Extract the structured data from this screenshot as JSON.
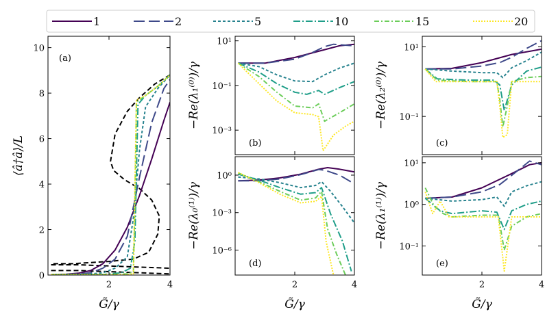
{
  "figure": {
    "style": {
      "colors": [
        "#440154",
        "#3e4989",
        "#26828e",
        "#1f9e89",
        "#6ccd5a",
        "#fde725"
      ],
      "dashes": [
        "",
        "16 6",
        "4 3",
        "10 3 2 3",
        "7 3 2 3",
        "2 2"
      ]
    },
    "legend": {
      "entries": [
        "1",
        "2",
        "5",
        "10",
        "15",
        "20"
      ],
      "placement": "top"
    },
    "x_label": "G̃/γ",
    "panels": [
      {
        "id": "a",
        "label": "(a)",
        "ylabel": "⟨â†â⟩/L",
        "yscale": "linear",
        "ylim": [
          0,
          10.5
        ],
        "yticks": [
          0,
          2,
          4,
          6,
          8,
          10
        ],
        "ytick_labels": [
          "0",
          "2",
          "4",
          "6",
          "8",
          "10"
        ]
      },
      {
        "id": "b",
        "label": "(b)",
        "ylabel": "−Re(λ₁⁽⁰⁾)/γ",
        "yscale": "log",
        "ylim": [
          8e-05,
          16
        ],
        "yticks": [
          0.001,
          0.1,
          10
        ],
        "ytick_labels": [
          "10⁻³",
          "10⁻¹",
          "10¹"
        ]
      },
      {
        "id": "c",
        "label": "(c)",
        "ylabel": "−Re(λ₂⁽⁰⁾)/γ",
        "yscale": "log",
        "ylim": [
          0.008,
          20
        ],
        "yticks": [
          0.1,
          10
        ],
        "ytick_labels": [
          "10⁻¹",
          "10¹"
        ]
      },
      {
        "id": "d",
        "label": "(d)",
        "ylabel": "−Re(λ₀⁽¹⁾)/γ",
        "yscale": "log",
        "ylim": [
          1e-08,
          30
        ],
        "yticks": [
          1e-06,
          0.001,
          1
        ],
        "ytick_labels": [
          "10⁻⁶",
          "10⁻³",
          "10⁰"
        ]
      },
      {
        "id": "e",
        "label": "(e)",
        "ylabel": "−Re(λ₁⁽¹⁾)/γ",
        "yscale": "log",
        "ylim": [
          0.02,
          14
        ],
        "yticks": [
          0.1,
          1,
          10
        ],
        "ytick_labels": [
          "10⁻¹",
          "10⁰",
          "10¹"
        ]
      }
    ],
    "x_ticks": [
      2,
      4
    ],
    "x_tick_labels": [
      "2",
      "4"
    ]
  },
  "chart_data": [
    {
      "type": "line",
      "panel": "a",
      "xlim": [
        0,
        4
      ],
      "ylim": [
        0,
        10.5
      ],
      "series": [
        {
          "name": "1",
          "x": [
            0.1,
            0.6,
            1.0,
            1.4,
            1.8,
            2.2,
            2.6,
            3.0,
            3.4,
            3.8,
            4.0
          ],
          "y": [
            0.02,
            0.04,
            0.08,
            0.2,
            0.5,
            1.1,
            2.1,
            3.5,
            5.1,
            6.8,
            7.6
          ]
        },
        {
          "name": "2",
          "x": [
            0.1,
            0.6,
            1.0,
            1.4,
            1.8,
            2.2,
            2.6,
            3.0,
            3.4,
            3.8,
            4.0
          ],
          "y": [
            0.02,
            0.03,
            0.05,
            0.1,
            0.3,
            0.7,
            1.7,
            4.3,
            6.7,
            8.2,
            8.6
          ]
        },
        {
          "name": "5",
          "x": [
            0.1,
            0.6,
            1.0,
            1.4,
            1.8,
            2.2,
            2.6,
            2.8,
            3.0,
            3.2,
            3.6,
            4.0
          ],
          "y": [
            0.02,
            0.02,
            0.02,
            0.05,
            0.1,
            0.3,
            0.8,
            2.5,
            5.5,
            7.4,
            8.2,
            8.8
          ]
        },
        {
          "name": "10",
          "x": [
            0.1,
            1.0,
            1.8,
            2.4,
            2.7,
            2.85,
            2.95,
            3.2,
            3.6,
            4.0
          ],
          "y": [
            0.02,
            0.02,
            0.02,
            0.1,
            0.3,
            1.5,
            7.5,
            7.9,
            8.3,
            8.8
          ]
        },
        {
          "name": "15",
          "x": [
            0.1,
            1.0,
            2.0,
            2.6,
            2.8,
            2.85,
            2.9,
            3.2,
            3.6,
            4.0
          ],
          "y": [
            0.02,
            0.02,
            0.02,
            0.05,
            0.15,
            3.0,
            7.6,
            7.9,
            8.3,
            8.8
          ]
        },
        {
          "name": "20",
          "x": [
            0.1,
            1.0,
            2.0,
            2.6,
            2.8,
            2.85,
            2.9,
            3.2,
            3.6,
            4.0
          ],
          "y": [
            0.02,
            0.02,
            0.02,
            0.02,
            0.05,
            4.0,
            7.7,
            7.9,
            8.3,
            8.8
          ]
        }
      ],
      "extra_lines": [
        {
          "style": "dashed",
          "color": "#000000",
          "x": [
            0.1,
            1.0,
            2.0,
            3.0,
            4.0
          ],
          "y": [
            0.2,
            0.2,
            0.15,
            0.1,
            0.05
          ]
        },
        {
          "style": "dashed",
          "color": "#000000",
          "x": [
            0.1,
            1.0,
            2.0,
            3.0,
            4.0
          ],
          "y": [
            0.45,
            0.45,
            0.4,
            0.35,
            0.3
          ]
        },
        {
          "style": "dashed",
          "color": "#000000",
          "x": [
            4.0,
            3.5,
            3.0,
            2.6,
            2.2,
            2.05,
            2.15,
            2.5,
            3.0,
            3.4,
            3.65,
            3.6,
            3.3,
            2.8,
            2.0,
            0.8,
            0.1
          ],
          "y": [
            8.8,
            8.4,
            7.8,
            7.2,
            6.2,
            5.0,
            4.6,
            4.2,
            3.8,
            3.3,
            2.6,
            1.8,
            1.0,
            0.7,
            0.6,
            0.5,
            0.5
          ]
        }
      ]
    },
    {
      "type": "line",
      "panel": "b",
      "yscale": "log",
      "xlim": [
        0,
        4
      ],
      "series": [
        {
          "name": "1",
          "x": [
            0.1,
            1.0,
            2.0,
            3.0,
            3.5,
            4.0
          ],
          "y": [
            1.0,
            1.0,
            1.8,
            4.0,
            6.0,
            7.0
          ]
        },
        {
          "name": "2",
          "x": [
            0.1,
            1.0,
            2.0,
            2.6,
            3.0,
            3.3,
            3.6,
            4.0
          ],
          "y": [
            1.0,
            1.0,
            1.5,
            3.0,
            5.5,
            7.0,
            6.5,
            6.0
          ]
        },
        {
          "name": "5",
          "x": [
            0.1,
            0.8,
            1.4,
            2.0,
            2.6,
            3.0,
            3.5,
            4.0
          ],
          "y": [
            1.0,
            0.7,
            0.3,
            0.16,
            0.15,
            0.3,
            0.6,
            1.0
          ]
        },
        {
          "name": "10",
          "x": [
            0.1,
            0.8,
            1.4,
            2.0,
            2.4,
            2.8,
            3.0,
            3.5,
            4.0
          ],
          "y": [
            1.0,
            0.4,
            0.12,
            0.05,
            0.04,
            0.06,
            0.04,
            0.08,
            0.15
          ]
        },
        {
          "name": "15",
          "x": [
            0.1,
            0.8,
            1.4,
            2.0,
            2.6,
            2.8,
            3.0,
            3.5,
            4.0
          ],
          "y": [
            1.0,
            0.25,
            0.05,
            0.012,
            0.01,
            0.015,
            0.0025,
            0.006,
            0.015
          ]
        },
        {
          "name": "20",
          "x": [
            0.1,
            0.8,
            1.4,
            2.0,
            2.6,
            2.8,
            2.95,
            3.3,
            3.7,
            4.0
          ],
          "y": [
            1.0,
            0.12,
            0.02,
            0.006,
            0.005,
            0.004,
            0.00012,
            0.0006,
            0.0015,
            0.0025
          ]
        }
      ]
    },
    {
      "type": "line",
      "panel": "c",
      "yscale": "log",
      "xlim": [
        0,
        4
      ],
      "series": [
        {
          "name": "1",
          "x": [
            0.1,
            1.0,
            2.0,
            3.0,
            4.0
          ],
          "y": [
            2.3,
            2.4,
            3.5,
            6.0,
            8.5
          ]
        },
        {
          "name": "2",
          "x": [
            0.1,
            1.0,
            2.0,
            2.6,
            3.0,
            3.5,
            4.0
          ],
          "y": [
            2.3,
            2.3,
            2.8,
            3.5,
            5.0,
            9.0,
            15.0
          ]
        },
        {
          "name": "5",
          "x": [
            0.1,
            1.0,
            2.0,
            2.5,
            2.7,
            3.0,
            3.5,
            4.0
          ],
          "y": [
            2.3,
            2.0,
            1.8,
            1.8,
            1.3,
            2.5,
            4.0,
            7.0
          ]
        },
        {
          "name": "10",
          "x": [
            0.1,
            0.5,
            1.5,
            2.4,
            2.6,
            2.75,
            3.0,
            3.5,
            4.0
          ],
          "y": [
            2.3,
            1.2,
            1.1,
            1.1,
            0.8,
            0.15,
            0.8,
            2.0,
            2.6
          ]
        },
        {
          "name": "15",
          "x": [
            0.1,
            0.5,
            1.5,
            2.5,
            2.6,
            2.7,
            2.85,
            3.0,
            3.5,
            4.0
          ],
          "y": [
            2.3,
            1.1,
            1.0,
            1.0,
            0.3,
            0.05,
            0.2,
            1.0,
            1.3,
            1.4
          ]
        },
        {
          "name": "20",
          "x": [
            0.1,
            0.45,
            1.5,
            2.5,
            2.6,
            2.7,
            2.85,
            3.0,
            3.5,
            4.0
          ],
          "y": [
            2.3,
            1.0,
            1.0,
            1.0,
            0.2,
            0.025,
            0.03,
            1.0,
            1.0,
            1.0
          ]
        }
      ]
    },
    {
      "type": "line",
      "panel": "d",
      "yscale": "log",
      "xlim": [
        0,
        4
      ],
      "series": [
        {
          "name": "1",
          "x": [
            0.1,
            0.8,
            1.5,
            2.2,
            2.8,
            3.1,
            3.5,
            4.0
          ],
          "y": [
            0.35,
            0.4,
            0.6,
            1.2,
            3.0,
            4.0,
            3.0,
            1.8
          ]
        },
        {
          "name": "2",
          "x": [
            0.1,
            0.8,
            1.5,
            2.2,
            2.8,
            3.0,
            3.5,
            4.0
          ],
          "y": [
            0.35,
            0.35,
            0.5,
            1.1,
            2.8,
            2.5,
            1.0,
            0.2
          ]
        },
        {
          "name": "5",
          "x": [
            0.1,
            0.8,
            1.5,
            2.2,
            2.7,
            2.9,
            3.2,
            3.6,
            4.0
          ],
          "y": [
            0.7,
            0.5,
            0.25,
            0.1,
            0.15,
            0.3,
            0.05,
            0.003,
            0.00015
          ]
        },
        {
          "name": "10",
          "x": [
            0.1,
            0.8,
            1.5,
            2.2,
            2.7,
            2.9,
            3.2,
            3.6,
            3.9
          ],
          "y": [
            1.2,
            0.4,
            0.1,
            0.03,
            0.04,
            0.1,
            0.0008,
            5e-06,
            2e-08
          ]
        },
        {
          "name": "15",
          "x": [
            0.1,
            0.8,
            1.5,
            2.2,
            2.7,
            2.9,
            3.1,
            3.4,
            3.7
          ],
          "y": [
            1.5,
            0.3,
            0.05,
            0.01,
            0.015,
            0.05,
            5e-05,
            5e-07,
            1e-08
          ]
        },
        {
          "name": "20",
          "x": [
            0.1,
            0.8,
            1.5,
            2.2,
            2.7,
            2.9,
            3.05,
            3.3
          ],
          "y": [
            1.6,
            0.25,
            0.03,
            0.006,
            0.008,
            0.02,
            5e-06,
            1e-08
          ]
        }
      ]
    },
    {
      "type": "line",
      "panel": "e",
      "yscale": "log",
      "xlim": [
        0,
        4
      ],
      "series": [
        {
          "name": "1",
          "x": [
            0.1,
            1.0,
            2.0,
            3.0,
            3.6,
            4.0
          ],
          "y": [
            1.4,
            1.5,
            2.5,
            5.5,
            9.0,
            10.0
          ]
        },
        {
          "name": "2",
          "x": [
            0.1,
            1.0,
            2.0,
            2.6,
            3.0,
            3.6,
            4.0
          ],
          "y": [
            1.4,
            1.5,
            2.0,
            3.0,
            5.0,
            11.0,
            9.0
          ]
        },
        {
          "name": "5",
          "x": [
            0.1,
            1.0,
            2.0,
            2.5,
            2.75,
            3.0,
            3.5,
            4.0
          ],
          "y": [
            1.4,
            1.2,
            1.3,
            1.5,
            0.9,
            2.0,
            2.8,
            3.5
          ]
        },
        {
          "name": "10",
          "x": [
            0.1,
            0.6,
            1.0,
            2.0,
            2.5,
            2.75,
            3.0,
            3.5,
            4.0
          ],
          "y": [
            1.4,
            0.7,
            0.6,
            0.7,
            0.65,
            0.25,
            0.7,
            1.0,
            1.2
          ]
        },
        {
          "name": "15",
          "x": [
            0.1,
            0.4,
            0.7,
            1.0,
            2.0,
            2.55,
            2.75,
            3.0,
            3.5,
            4.0
          ],
          "y": [
            2.5,
            0.9,
            0.6,
            0.5,
            0.55,
            0.55,
            0.08,
            0.3,
            0.5,
            0.6
          ]
        },
        {
          "name": "20",
          "x": [
            0.1,
            0.35,
            0.6,
            0.9,
            2.0,
            2.55,
            2.75,
            3.0,
            3.5,
            4.0
          ],
          "y": [
            2.0,
            0.6,
            1.2,
            0.5,
            0.5,
            0.5,
            0.025,
            0.5,
            0.5,
            0.5
          ]
        }
      ]
    }
  ]
}
